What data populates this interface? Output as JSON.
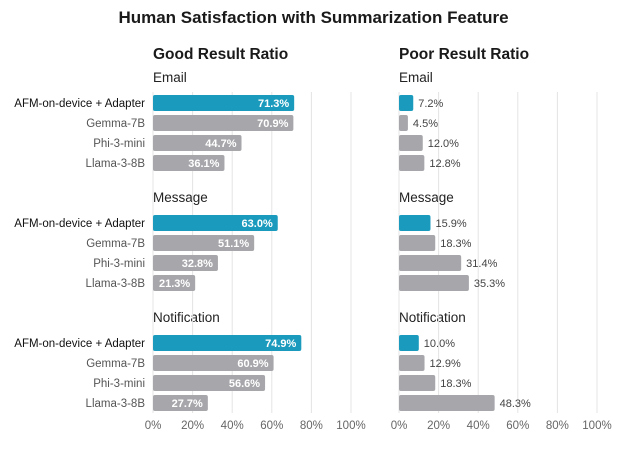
{
  "chart_data": {
    "type": "bar",
    "orientation": "horizontal",
    "title": "Human Satisfaction with Summarization Feature",
    "models": [
      "AFM-on-device + Adapter",
      "Gemma-7B",
      "Phi-3-mini",
      "Llama-3-8B"
    ],
    "x_ticks": [
      "0%",
      "20%",
      "40%",
      "60%",
      "80%",
      "100%"
    ],
    "xlim": [
      0,
      100
    ],
    "grid": true,
    "highlight_color": "#1a9bbd",
    "bar_color": "#a7a6ab",
    "panels": [
      {
        "title": "Good Result Ratio",
        "groups": [
          {
            "name": "Email",
            "values": [
              71.3,
              70.9,
              44.7,
              36.1
            ],
            "labels": [
              "71.3%",
              "70.9%",
              "44.7%",
              "36.1%"
            ]
          },
          {
            "name": "Message",
            "values": [
              63.0,
              51.1,
              32.8,
              21.3
            ],
            "labels": [
              "63.0%",
              "51.1%",
              "32.8%",
              "21.3%"
            ]
          },
          {
            "name": "Notification",
            "values": [
              74.9,
              60.9,
              56.6,
              27.7
            ],
            "labels": [
              "74.9%",
              "60.9%",
              "56.6%",
              "27.7%"
            ]
          }
        ]
      },
      {
        "title": "Poor Result Ratio",
        "groups": [
          {
            "name": "Email",
            "values": [
              7.2,
              4.5,
              12.0,
              12.8
            ],
            "labels": [
              "7.2%",
              "4.5%",
              "12.0%",
              "12.8%"
            ]
          },
          {
            "name": "Message",
            "values": [
              15.9,
              18.3,
              31.4,
              35.3
            ],
            "labels": [
              "15.9%",
              "18.3%",
              "31.4%",
              "35.3%"
            ]
          },
          {
            "name": "Notification",
            "values": [
              10.0,
              12.9,
              18.3,
              48.3
            ],
            "labels": [
              "10.0%",
              "12.9%",
              "18.3%",
              "48.3%"
            ]
          }
        ]
      }
    ]
  }
}
